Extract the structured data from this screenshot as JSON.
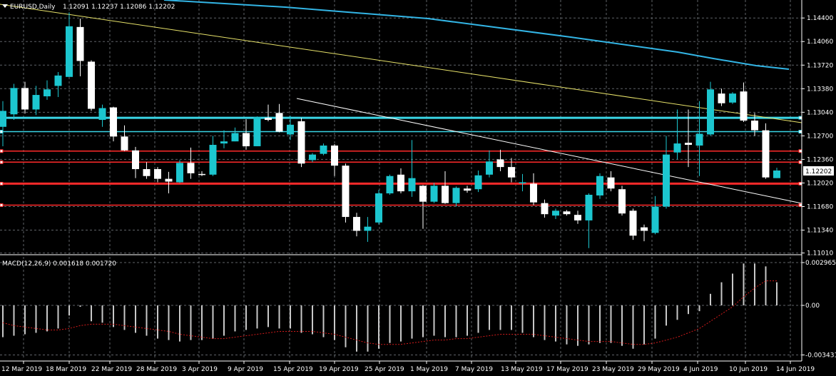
{
  "header": {
    "symbol": "EURUSD,Daily",
    "ohlc": "1.12091 1.12237 1.12086 1.12202"
  },
  "colors": {
    "background": "#000000",
    "grid": "#5f6368",
    "bull": "#1cc6cf",
    "bear": "#ffffff",
    "ma_slow": "#33b5e5",
    "ma_fast": "#e8e36a",
    "support": "#ff2a2a",
    "resistance": "#3ad6e6",
    "trendline": "#ffffff",
    "macd_hist": "#c8c8c8",
    "macd_signal": "#d21b1b"
  },
  "price_panel": {
    "price_labels": [
      "1.14400",
      "1.14060",
      "1.13720",
      "1.13380",
      "1.13040",
      "1.12700",
      "1.12360",
      "1.12020",
      "1.11680",
      "1.11340",
      "1.11010"
    ],
    "current_price": "1.12202"
  },
  "macd_panel": {
    "label": "MACD(12,26,9) 0.001618 0.001720",
    "axis_labels": [
      "0.002965",
      "0.00",
      "-0.003431"
    ]
  },
  "time_labels": [
    "12 Mar 2019",
    "18 Mar 2019",
    "22 Mar 2019",
    "28 Mar 2019",
    "3 Apr 2019",
    "9 Apr 2019",
    "15 Apr 2019",
    "19 Apr 2019",
    "25 Apr 2019",
    "1 May 2019",
    "7 May 2019",
    "13 May 2019",
    "17 May 2019",
    "23 May 2019",
    "29 May 2019",
    "4 Jun 2019",
    "10 Jun 2019",
    "14 Jun 2019"
  ],
  "chart_data": {
    "type": "candlestick",
    "symbol": "EURUSD",
    "timeframe": "Daily",
    "ylim": [
      1.1101,
      1.1474
    ],
    "candles": [
      {
        "o": 1.1283,
        "h": 1.132,
        "l": 1.1255,
        "c": 1.1306
      },
      {
        "o": 1.1301,
        "h": 1.1345,
        "l": 1.1293,
        "c": 1.1339
      },
      {
        "o": 1.1339,
        "h": 1.1348,
        "l": 1.1302,
        "c": 1.1308
      },
      {
        "o": 1.1308,
        "h": 1.1342,
        "l": 1.13,
        "c": 1.1329
      },
      {
        "o": 1.1327,
        "h": 1.135,
        "l": 1.1322,
        "c": 1.1337
      },
      {
        "o": 1.1342,
        "h": 1.1362,
        "l": 1.1326,
        "c": 1.1357
      },
      {
        "o": 1.1355,
        "h": 1.1448,
        "l": 1.1355,
        "c": 1.1428
      },
      {
        "o": 1.1427,
        "h": 1.1439,
        "l": 1.1356,
        "c": 1.1378
      },
      {
        "o": 1.1377,
        "h": 1.1379,
        "l": 1.1306,
        "c": 1.1309
      },
      {
        "o": 1.1293,
        "h": 1.1315,
        "l": 1.1283,
        "c": 1.131
      },
      {
        "o": 1.1311,
        "h": 1.1312,
        "l": 1.1262,
        "c": 1.1269
      },
      {
        "o": 1.1269,
        "h": 1.1285,
        "l": 1.1248,
        "c": 1.1249
      },
      {
        "o": 1.1249,
        "h": 1.1254,
        "l": 1.1209,
        "c": 1.1222
      },
      {
        "o": 1.1222,
        "h": 1.1232,
        "l": 1.1208,
        "c": 1.1212
      },
      {
        "o": 1.1222,
        "h": 1.1225,
        "l": 1.1203,
        "c": 1.1208
      },
      {
        "o": 1.1208,
        "h": 1.1218,
        "l": 1.1187,
        "c": 1.1204
      },
      {
        "o": 1.1203,
        "h": 1.1235,
        "l": 1.1202,
        "c": 1.1231
      },
      {
        "o": 1.1231,
        "h": 1.1253,
        "l": 1.1208,
        "c": 1.1216
      },
      {
        "o": 1.1215,
        "h": 1.1219,
        "l": 1.1212,
        "c": 1.1214
      },
      {
        "o": 1.1214,
        "h": 1.127,
        "l": 1.1212,
        "c": 1.1257
      },
      {
        "o": 1.1259,
        "h": 1.1278,
        "l": 1.1252,
        "c": 1.1262
      },
      {
        "o": 1.1262,
        "h": 1.1282,
        "l": 1.1262,
        "c": 1.1274
      },
      {
        "o": 1.1274,
        "h": 1.1294,
        "l": 1.125,
        "c": 1.1255
      },
      {
        "o": 1.1255,
        "h": 1.1298,
        "l": 1.1255,
        "c": 1.1297
      },
      {
        "o": 1.1296,
        "h": 1.1315,
        "l": 1.1291,
        "c": 1.1293
      },
      {
        "o": 1.1303,
        "h": 1.1316,
        "l": 1.1275,
        "c": 1.1276
      },
      {
        "o": 1.1272,
        "h": 1.1299,
        "l": 1.1264,
        "c": 1.1286
      },
      {
        "o": 1.1291,
        "h": 1.1296,
        "l": 1.1225,
        "c": 1.123
      },
      {
        "o": 1.1235,
        "h": 1.1245,
        "l": 1.1232,
        "c": 1.1243
      },
      {
        "o": 1.1244,
        "h": 1.1259,
        "l": 1.1242,
        "c": 1.1256
      },
      {
        "o": 1.1256,
        "h": 1.1258,
        "l": 1.1212,
        "c": 1.1227
      },
      {
        "o": 1.1227,
        "h": 1.123,
        "l": 1.1145,
        "c": 1.1153
      },
      {
        "o": 1.1153,
        "h": 1.1159,
        "l": 1.1125,
        "c": 1.1133
      },
      {
        "o": 1.1133,
        "h": 1.1153,
        "l": 1.1117,
        "c": 1.1139
      },
      {
        "o": 1.1145,
        "h": 1.1192,
        "l": 1.1142,
        "c": 1.1187
      },
      {
        "o": 1.1187,
        "h": 1.1214,
        "l": 1.1185,
        "c": 1.1212
      },
      {
        "o": 1.1214,
        "h": 1.1223,
        "l": 1.1187,
        "c": 1.119
      },
      {
        "o": 1.119,
        "h": 1.1264,
        "l": 1.1182,
        "c": 1.1209
      },
      {
        "o": 1.1198,
        "h": 1.1199,
        "l": 1.1136,
        "c": 1.1175
      },
      {
        "o": 1.1175,
        "h": 1.1202,
        "l": 1.1173,
        "c": 1.1198
      },
      {
        "o": 1.1198,
        "h": 1.1219,
        "l": 1.1172,
        "c": 1.1173
      },
      {
        "o": 1.1173,
        "h": 1.1197,
        "l": 1.1168,
        "c": 1.1195
      },
      {
        "o": 1.1194,
        "h": 1.1198,
        "l": 1.1188,
        "c": 1.1191
      },
      {
        "o": 1.1193,
        "h": 1.122,
        "l": 1.1189,
        "c": 1.1213
      },
      {
        "o": 1.1214,
        "h": 1.1249,
        "l": 1.121,
        "c": 1.1233
      },
      {
        "o": 1.1236,
        "h": 1.125,
        "l": 1.1219,
        "c": 1.1225
      },
      {
        "o": 1.1225,
        "h": 1.1238,
        "l": 1.1203,
        "c": 1.121
      },
      {
        "o": 1.1202,
        "h": 1.1215,
        "l": 1.119,
        "c": 1.1203
      },
      {
        "o": 1.1201,
        "h": 1.1216,
        "l": 1.117,
        "c": 1.1174
      },
      {
        "o": 1.1173,
        "h": 1.1178,
        "l": 1.1152,
        "c": 1.1157
      },
      {
        "o": 1.1155,
        "h": 1.1165,
        "l": 1.115,
        "c": 1.1162
      },
      {
        "o": 1.1161,
        "h": 1.1163,
        "l": 1.1155,
        "c": 1.1157
      },
      {
        "o": 1.1156,
        "h": 1.1162,
        "l": 1.1143,
        "c": 1.1148
      },
      {
        "o": 1.1148,
        "h": 1.1187,
        "l": 1.1108,
        "c": 1.1185
      },
      {
        "o": 1.1184,
        "h": 1.1216,
        "l": 1.1179,
        "c": 1.1212
      },
      {
        "o": 1.121,
        "h": 1.1219,
        "l": 1.119,
        "c": 1.1194
      },
      {
        "o": 1.1193,
        "h": 1.1198,
        "l": 1.1155,
        "c": 1.1158
      },
      {
        "o": 1.1162,
        "h": 1.1165,
        "l": 1.112,
        "c": 1.1126
      },
      {
        "o": 1.1138,
        "h": 1.1142,
        "l": 1.1118,
        "c": 1.1133
      },
      {
        "o": 1.113,
        "h": 1.1183,
        "l": 1.1128,
        "c": 1.1168
      },
      {
        "o": 1.1168,
        "h": 1.127,
        "l": 1.1165,
        "c": 1.1243
      },
      {
        "o": 1.1246,
        "h": 1.1308,
        "l": 1.1236,
        "c": 1.1259
      },
      {
        "o": 1.126,
        "h": 1.1308,
        "l": 1.1225,
        "c": 1.1257
      },
      {
        "o": 1.1256,
        "h": 1.132,
        "l": 1.1212,
        "c": 1.1273
      },
      {
        "o": 1.1272,
        "h": 1.1348,
        "l": 1.127,
        "c": 1.1337
      },
      {
        "o": 1.1331,
        "h": 1.1338,
        "l": 1.1313,
        "c": 1.1317
      },
      {
        "o": 1.1318,
        "h": 1.1333,
        "l": 1.1316,
        "c": 1.1331
      },
      {
        "o": 1.1334,
        "h": 1.1347,
        "l": 1.129,
        "c": 1.1292
      },
      {
        "o": 1.1292,
        "h": 1.1303,
        "l": 1.127,
        "c": 1.1278
      },
      {
        "o": 1.1278,
        "h": 1.1288,
        "l": 1.1208,
        "c": 1.121
      },
      {
        "o": 1.1209,
        "h": 1.1224,
        "l": 1.1209,
        "c": 1.122
      }
    ],
    "macd": {
      "values": [
        -0.0022,
        -0.0021,
        -0.002,
        -0.0019,
        -0.0018,
        -0.0016,
        -0.0007,
        -0.0001,
        -0.0011,
        -0.0012,
        -0.0015,
        -0.0017,
        -0.0019,
        -0.0021,
        -0.0023,
        -0.0024,
        -0.0025,
        -0.0024,
        -0.0024,
        -0.0023,
        -0.0021,
        -0.0018,
        -0.0017,
        -0.0016,
        -0.0015,
        -0.0016,
        -0.0016,
        -0.0019,
        -0.002,
        -0.0022,
        -0.0024,
        -0.0029,
        -0.0032,
        -0.0032,
        -0.003,
        -0.0026,
        -0.0025,
        -0.0023,
        -0.0022,
        -0.0021,
        -0.0022,
        -0.0022,
        -0.0021,
        -0.0019,
        -0.0017,
        -0.0017,
        -0.0017,
        -0.0019,
        -0.0022,
        -0.0024,
        -0.0025,
        -0.0027,
        -0.0028,
        -0.0027,
        -0.0026,
        -0.0026,
        -0.0028,
        -0.003,
        -0.0027,
        -0.0023,
        -0.0014,
        -0.001,
        -0.0006,
        -0.0004,
        0.0008,
        0.0016,
        0.0022,
        0.0029,
        0.0029,
        0.0027,
        0.0016
      ],
      "signal": [
        -0.0012,
        -0.0014,
        -0.0015,
        -0.0016,
        -0.0017,
        -0.0017,
        -0.0016,
        -0.0014,
        -0.0013,
        -0.0013,
        -0.0013,
        -0.0014,
        -0.0015,
        -0.0016,
        -0.0017,
        -0.0018,
        -0.002,
        -0.0021,
        -0.0022,
        -0.0023,
        -0.0023,
        -0.0022,
        -0.0021,
        -0.002,
        -0.0019,
        -0.0018,
        -0.0018,
        -0.0018,
        -0.0018,
        -0.0019,
        -0.002,
        -0.0022,
        -0.0024,
        -0.0026,
        -0.0027,
        -0.0027,
        -0.0027,
        -0.0026,
        -0.0025,
        -0.0024,
        -0.0024,
        -0.0023,
        -0.0023,
        -0.0022,
        -0.0021,
        -0.002,
        -0.002,
        -0.002,
        -0.002,
        -0.0021,
        -0.0022,
        -0.0023,
        -0.0024,
        -0.0025,
        -0.0025,
        -0.0025,
        -0.0026,
        -0.0027,
        -0.0027,
        -0.0026,
        -0.0024,
        -0.0022,
        -0.0019,
        -0.0016,
        -0.0011,
        -0.0006,
        -0.0001,
        0.0006,
        0.0012,
        0.0017,
        0.0017
      ],
      "ylim": [
        -0.003431,
        0.002965
      ]
    },
    "horizontal_levels": [
      {
        "price": 1.1296,
        "color": "resistance",
        "width": 3
      },
      {
        "price": 1.1276,
        "color": "resistance",
        "width": 1.5
      },
      {
        "price": 1.1248,
        "color": "support",
        "width": 1.5
      },
      {
        "price": 1.1232,
        "color": "support",
        "width": 1.5
      },
      {
        "price": 1.1201,
        "color": "support",
        "width": 3
      },
      {
        "price": 1.117,
        "color": "support",
        "width": 1.5
      }
    ]
  }
}
